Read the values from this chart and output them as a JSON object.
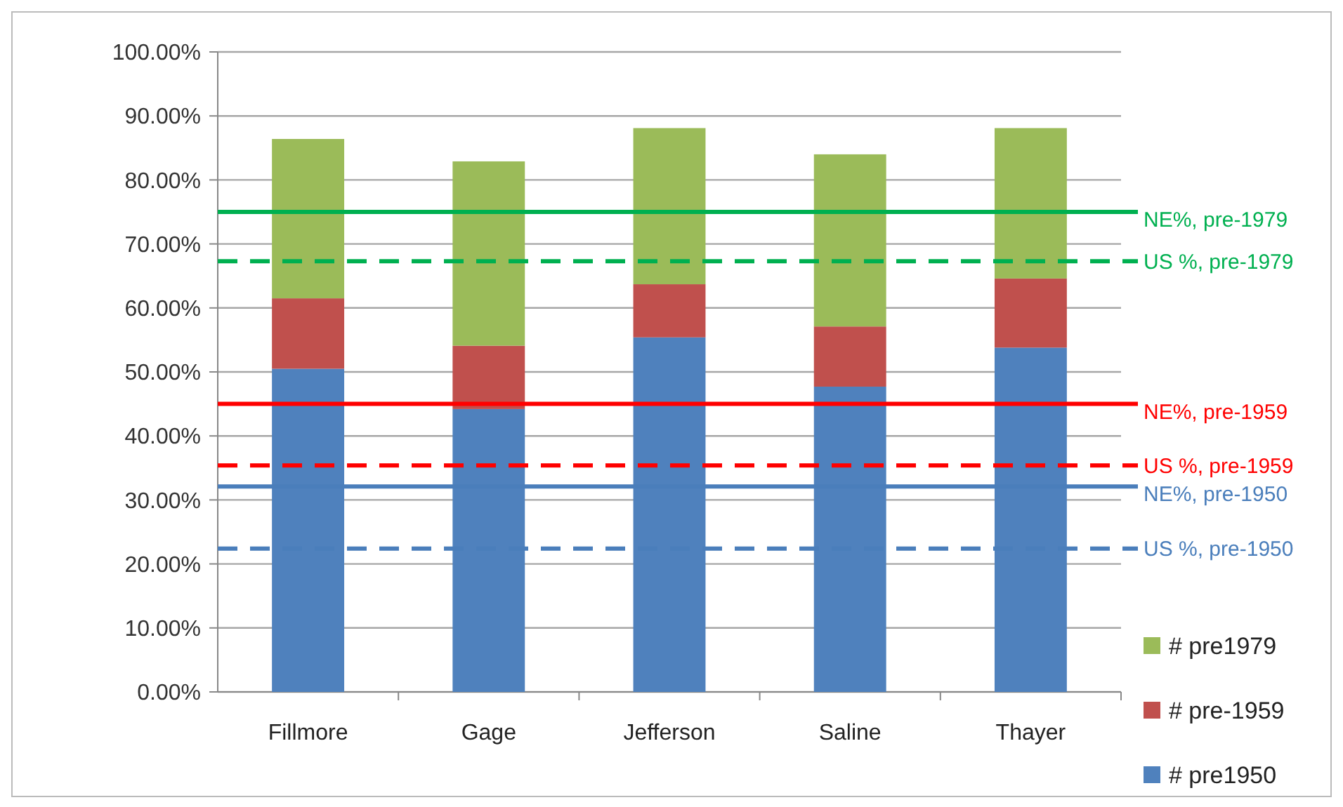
{
  "chart_data": {
    "type": "bar",
    "stacked": true,
    "categories": [
      "Fillmore",
      "Gage",
      "Jefferson",
      "Saline",
      "Thayer"
    ],
    "series": [
      {
        "name": "# pre1950",
        "color": "#4f81bd",
        "values": [
          0.505,
          0.442,
          0.554,
          0.477,
          0.538
        ]
      },
      {
        "name": "# pre-1959",
        "color": "#c0504d",
        "values": [
          0.11,
          0.099,
          0.083,
          0.094,
          0.108
        ]
      },
      {
        "name": "# pre1979",
        "color": "#9bbb59",
        "values": [
          0.249,
          0.288,
          0.244,
          0.269,
          0.235
        ]
      }
    ],
    "ylim": [
      0,
      1
    ],
    "yticks": [
      {
        "value": 0,
        "label": "0.00%"
      },
      {
        "value": 0.1,
        "label": "10.00%"
      },
      {
        "value": 0.2,
        "label": "20.00%"
      },
      {
        "value": 0.3,
        "label": "30.00%"
      },
      {
        "value": 0.4,
        "label": "40.00%"
      },
      {
        "value": 0.5,
        "label": "50.00%"
      },
      {
        "value": 0.6,
        "label": "60.00%"
      },
      {
        "value": 0.7,
        "label": "70.00%"
      },
      {
        "value": 0.8,
        "label": "80.00%"
      },
      {
        "value": 0.9,
        "label": "90.00%"
      },
      {
        "value": 1,
        "label": "100.00%"
      }
    ],
    "grid": "y",
    "legend": "right",
    "ref_lines": [
      {
        "axis": "y",
        "value": 0.75,
        "label": "NE%, pre-1979",
        "color": "#00b050",
        "line_style": "solid"
      },
      {
        "axis": "y",
        "value": 0.673,
        "label": "US %, pre-1979",
        "color": "#00b050",
        "line_style": "dashed"
      },
      {
        "axis": "y",
        "value": 0.45,
        "label": "NE%, pre-1959",
        "color": "#ff0000",
        "line_style": "solid"
      },
      {
        "axis": "y",
        "value": 0.354,
        "label": "US %, pre-1959",
        "color": "#ff0000",
        "line_style": "dashed"
      },
      {
        "axis": "y",
        "value": 0.321,
        "label": "NE%, pre-1950",
        "color": "#4a7ebb",
        "line_style": "solid"
      },
      {
        "axis": "y",
        "value": 0.224,
        "label": "US %, pre-1950",
        "color": "#4a7ebb",
        "line_style": "dashed"
      }
    ]
  }
}
